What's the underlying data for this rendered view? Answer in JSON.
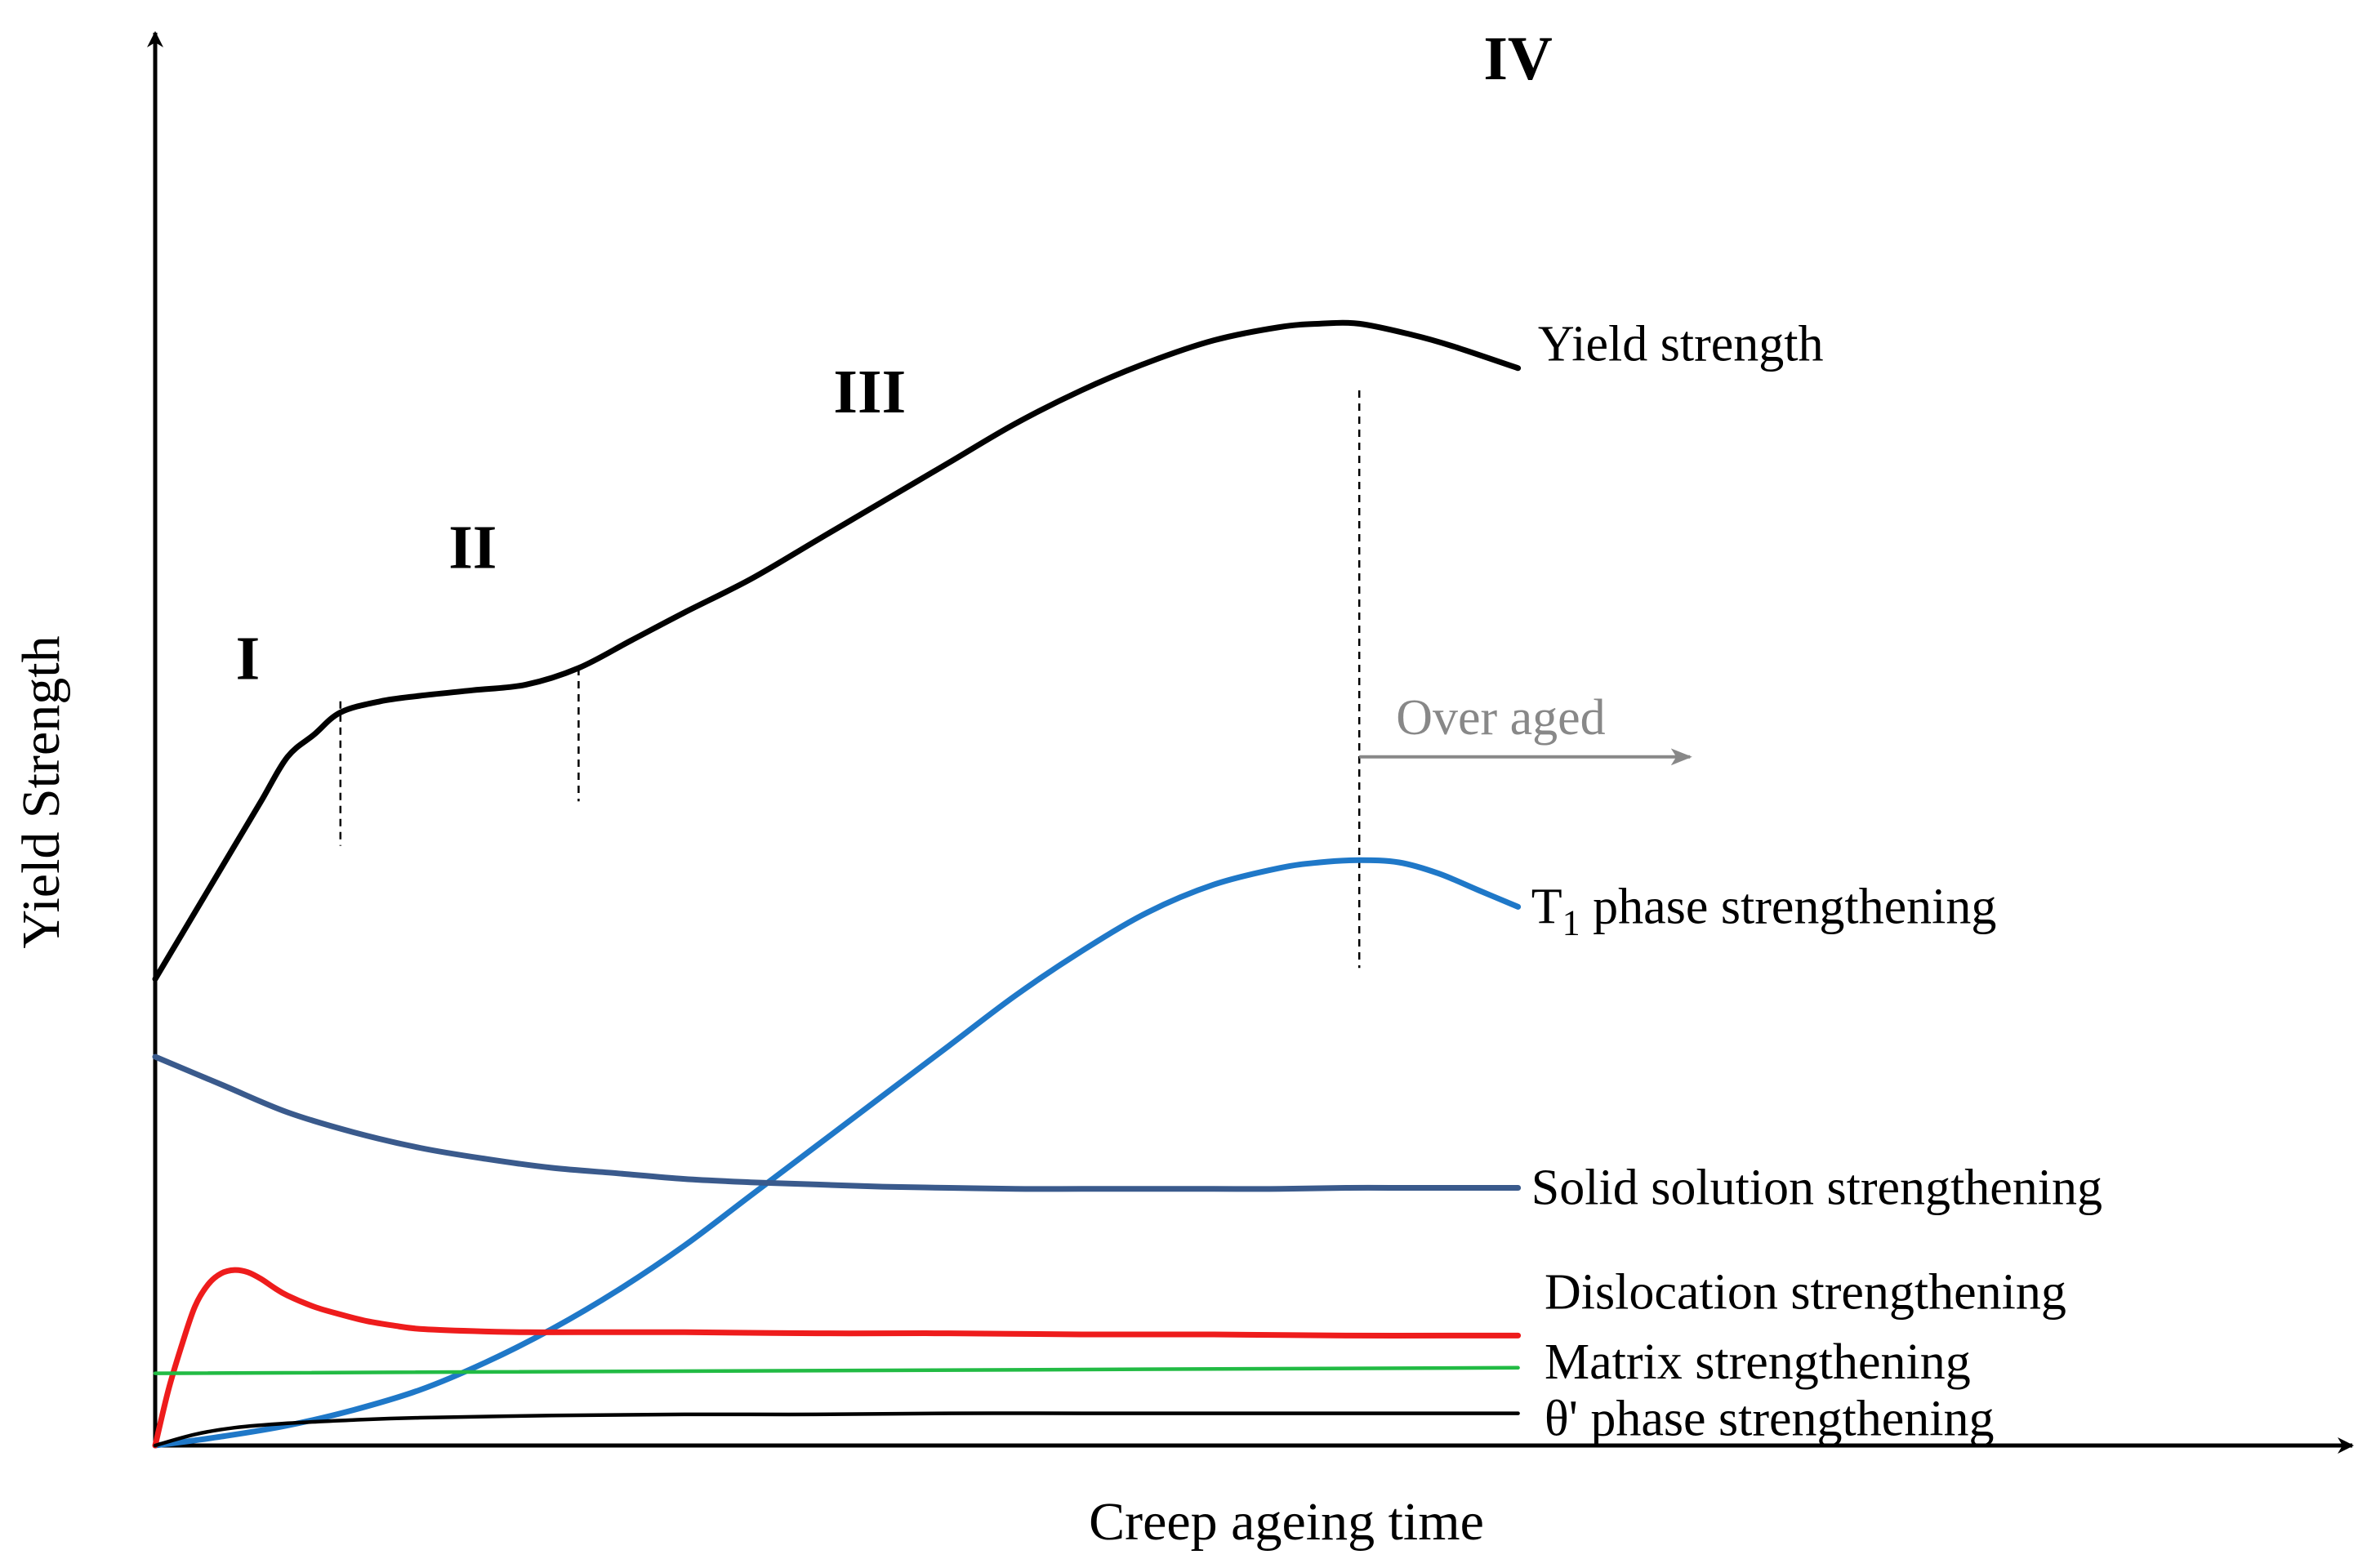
{
  "chart_data": {
    "type": "line",
    "title": "",
    "xlabel": "Creep ageing time",
    "ylabel": "Yield Strength",
    "xlim": [
      0,
      100
    ],
    "ylim": [
      0,
      100
    ],
    "grid": false,
    "legend": "direct labels at right end of each curve",
    "stages": [
      {
        "label": "I",
        "x": 7
      },
      {
        "label": "II",
        "x": 24
      },
      {
        "label": "III",
        "x": 54
      },
      {
        "label": "IV",
        "x": 103
      }
    ],
    "stage_boundaries": [
      {
        "x": 14,
        "y_from": 54,
        "y_to": 67
      },
      {
        "x": 32,
        "y_from": 58,
        "y_to": 70
      },
      {
        "x": 91,
        "y_from": 43,
        "y_to": 95
      }
    ],
    "annotation": {
      "text": "Over aged",
      "x_start": 91,
      "x_end": 116,
      "y": 62,
      "color": "#888888"
    },
    "series": [
      {
        "name": "Yield strength",
        "color": "#000000",
        "x": [
          0,
          2,
          4,
          6,
          8,
          10,
          12,
          14,
          17,
          20,
          24,
          28,
          32,
          36,
          40,
          45,
          50,
          55,
          60,
          65,
          70,
          75,
          80,
          85,
          88,
          91,
          95,
          98,
          103
        ],
        "y": [
          42,
          46,
          50,
          54,
          58,
          62,
          64,
          66,
          67,
          67.5,
          68,
          68.5,
          70,
          72.5,
          75,
          78,
          81.5,
          85,
          88.5,
          92,
          95,
          97.5,
          99.5,
          100.7,
          101,
          101,
          100,
          99,
          97
        ]
      },
      {
        "name": "T1 phase strengthening",
        "color": "#1f78c8",
        "x": [
          0,
          5,
          10,
          15,
          20,
          25,
          30,
          35,
          40,
          45,
          50,
          55,
          60,
          65,
          70,
          75,
          80,
          85,
          88,
          91,
          94,
          97,
          100,
          103
        ],
        "y": [
          0,
          0.8,
          1.8,
          3.2,
          5,
          7.5,
          10.5,
          14,
          18,
          22.5,
          27,
          31.5,
          36,
          40.5,
          44.5,
          48,
          50.5,
          52,
          52.5,
          52.7,
          52.5,
          51.5,
          50,
          48.5
        ]
      },
      {
        "name": "Solid solution strengthening",
        "color": "#3a5a8c",
        "x": [
          0,
          5,
          10,
          15,
          20,
          25,
          30,
          35,
          40,
          45,
          50,
          55,
          60,
          65,
          70,
          75,
          80,
          85,
          90,
          95,
          100,
          103
        ],
        "y": [
          35,
          32.5,
          30,
          28.2,
          26.8,
          25.8,
          25,
          24.5,
          24,
          23.7,
          23.5,
          23.3,
          23.2,
          23.1,
          23.1,
          23.1,
          23.1,
          23.1,
          23.2,
          23.2,
          23.2,
          23.2
        ]
      },
      {
        "name": "Dislocation strengthening",
        "color": "#ee1c1c",
        "x": [
          0,
          1,
          2,
          3,
          4,
          5,
          6,
          7,
          8,
          9,
          10,
          12,
          14,
          16,
          18,
          20,
          24,
          28,
          32,
          40,
          50,
          60,
          70,
          80,
          90,
          100,
          103
        ],
        "y": [
          0,
          5,
          9,
          12.5,
          14.5,
          15.5,
          15.8,
          15.6,
          15,
          14.2,
          13.5,
          12.5,
          11.8,
          11.2,
          10.8,
          10.5,
          10.3,
          10.2,
          10.2,
          10.2,
          10.1,
          10.1,
          10,
          10,
          9.9,
          9.9,
          9.9
        ]
      },
      {
        "name": "Matrix strengthening",
        "color": "#22bb44",
        "x": [
          0,
          103
        ],
        "y": [
          6.5,
          7
        ]
      },
      {
        "name": "θ' phase strengthening",
        "color": "#000000",
        "x": [
          0,
          3,
          6,
          10,
          15,
          20,
          30,
          40,
          50,
          60,
          70,
          80,
          90,
          103
        ],
        "y": [
          0,
          1,
          1.6,
          2,
          2.3,
          2.5,
          2.7,
          2.8,
          2.8,
          2.9,
          2.9,
          2.9,
          2.9,
          2.9
        ]
      }
    ]
  }
}
